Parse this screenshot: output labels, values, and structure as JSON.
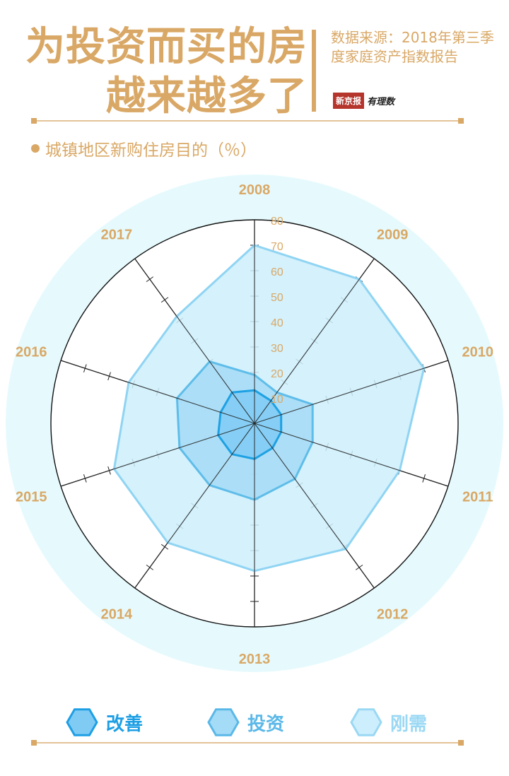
{
  "header": {
    "title_line1": "为投资而买的房",
    "title_line2": "越来越多了",
    "source_text": "数据来源：2018年第三季度家庭资产指数报告",
    "brand_name": "新京报",
    "brand_tag": "有理数"
  },
  "subtitle": "城镇地区新购住房目的（％）",
  "colors": {
    "accent": "#d9a866",
    "halo": "#e6fafd"
  },
  "chart_data": {
    "type": "radar",
    "categories": [
      "2008",
      "2009",
      "2010",
      "2011",
      "2012",
      "2013",
      "2014",
      "2015",
      "2016",
      "2017"
    ],
    "rlim": [
      0,
      80
    ],
    "ticks": [
      10,
      20,
      30,
      40,
      50,
      60,
      70,
      80
    ],
    "grid": true,
    "legend_position": "bottom",
    "series": [
      {
        "name": "刚需",
        "values": [
          70,
          70,
          70,
          60,
          61,
          58,
          58,
          58,
          52,
          52
        ],
        "fill": "#cdeefc",
        "stroke": "#8fd4f3"
      },
      {
        "name": "投资",
        "values": [
          19,
          15,
          24,
          24,
          27,
          30,
          30,
          31,
          32,
          30
        ],
        "fill": "#a4dbf6",
        "stroke": "#5ebde9"
      },
      {
        "name": "改善",
        "values": [
          13,
          11,
          11,
          11,
          12,
          14,
          15,
          15,
          14,
          15
        ],
        "fill": "#7fcbf4",
        "stroke": "#1ea1e3"
      }
    ]
  },
  "legend": [
    {
      "label": "改善",
      "color": "#1e9fe4",
      "fill": "#7fcbf4"
    },
    {
      "label": "投资",
      "color": "#5ab8e8",
      "fill": "#a4dbf6"
    },
    {
      "label": "刚需",
      "color": "#9ad8f4",
      "fill": "#cdeefc"
    }
  ]
}
